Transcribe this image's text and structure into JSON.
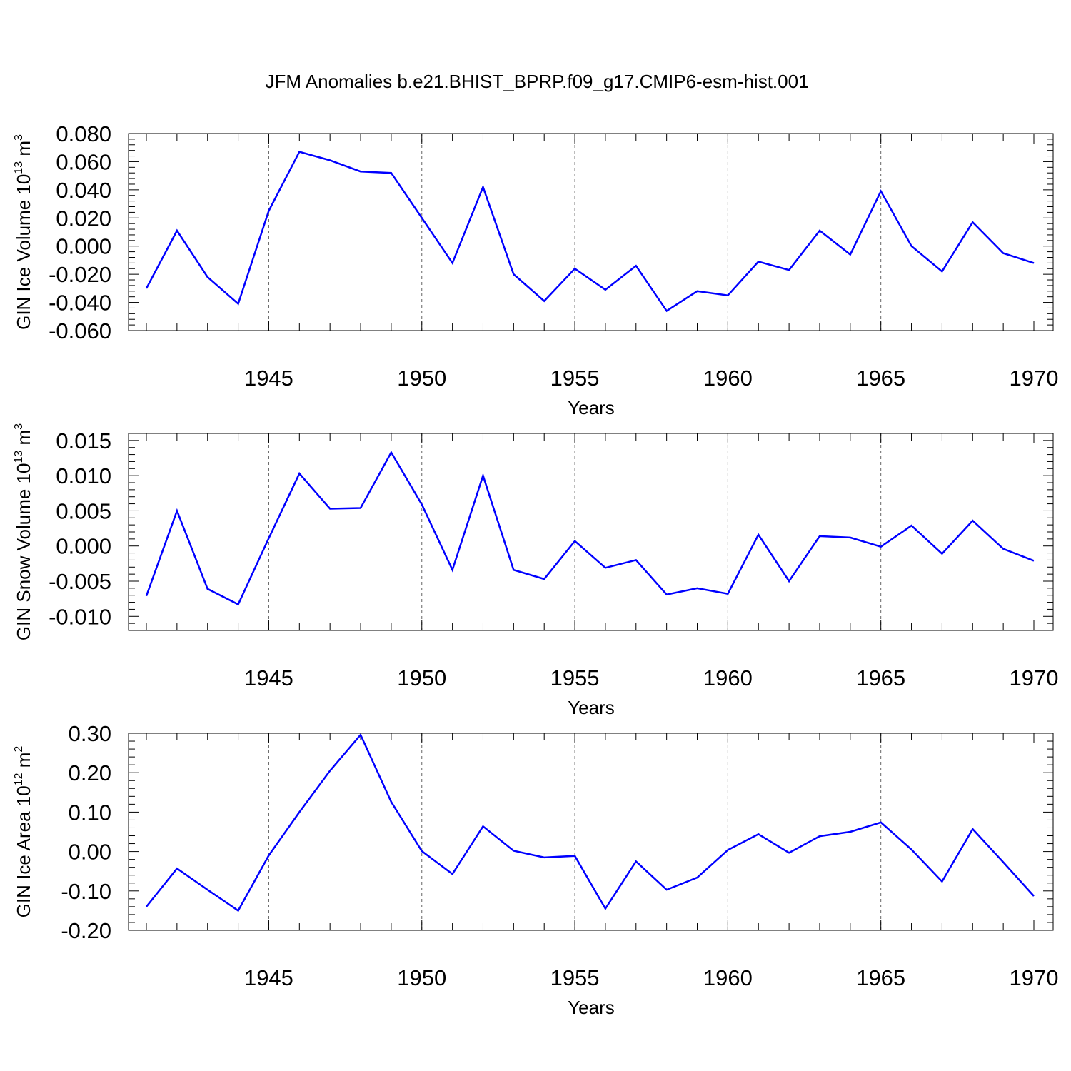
{
  "title": "JFM Anomalies b.e21.BHIST_BPRP.f09_g17.CMIP6-esm-hist.001",
  "line_color": "#0000ff",
  "chart_data": [
    {
      "type": "line",
      "ylabel_main": "GIN Ice Volume 10",
      "ylabel_exp": "13",
      "ylabel_unit": "m",
      "ylabel_unit_exp": "3",
      "xlabel": "Years",
      "xlim": [
        1941,
        1970
      ],
      "ylim": [
        -0.06,
        0.08
      ],
      "yticks": [
        -0.06,
        -0.04,
        -0.02,
        0.0,
        0.02,
        0.04,
        0.06,
        0.08
      ],
      "ytick_labels": [
        "-0.060",
        "-0.040",
        "-0.020",
        "0.000",
        "0.020",
        "0.040",
        "0.060",
        "0.080"
      ],
      "xticks": [
        1945,
        1950,
        1955,
        1960,
        1965,
        1970
      ],
      "xtick_labels": [
        "1945",
        "1950",
        "1955",
        "1960",
        "1965",
        "1970"
      ],
      "grid": "vertical dashed at major x ticks",
      "x": [
        1941,
        1942,
        1943,
        1944,
        1945,
        1946,
        1947,
        1948,
        1949,
        1950,
        1951,
        1952,
        1953,
        1954,
        1955,
        1956,
        1957,
        1958,
        1959,
        1960,
        1961,
        1962,
        1963,
        1964,
        1965,
        1966,
        1967,
        1968,
        1969,
        1970
      ],
      "y": [
        -0.03,
        0.011,
        -0.022,
        -0.041,
        0.025,
        0.067,
        0.061,
        0.053,
        0.052,
        0.02,
        -0.012,
        0.042,
        -0.02,
        -0.039,
        -0.016,
        -0.031,
        -0.014,
        -0.046,
        -0.032,
        -0.035,
        -0.011,
        -0.017,
        0.011,
        -0.006,
        0.039,
        0.0,
        -0.018,
        0.017,
        -0.005,
        -0.012
      ]
    },
    {
      "type": "line",
      "ylabel_main": "GIN Snow Volume 10",
      "ylabel_exp": "13",
      "ylabel_unit": "m",
      "ylabel_unit_exp": "3",
      "xlabel": "Years",
      "xlim": [
        1941,
        1970
      ],
      "ylim": [
        -0.012,
        0.016
      ],
      "yticks": [
        -0.01,
        -0.005,
        0.0,
        0.005,
        0.01,
        0.015
      ],
      "ytick_labels": [
        "-0.010",
        "-0.005",
        "0.000",
        "0.005",
        "0.010",
        "0.015"
      ],
      "xticks": [
        1945,
        1950,
        1955,
        1960,
        1965,
        1970
      ],
      "xtick_labels": [
        "1945",
        "1950",
        "1955",
        "1960",
        "1965",
        "1970"
      ],
      "grid": "vertical dashed at major x ticks",
      "x": [
        1941,
        1942,
        1943,
        1944,
        1945,
        1946,
        1947,
        1948,
        1949,
        1950,
        1951,
        1952,
        1953,
        1954,
        1955,
        1956,
        1957,
        1958,
        1959,
        1960,
        1961,
        1962,
        1963,
        1964,
        1965,
        1966,
        1967,
        1968,
        1969,
        1970
      ],
      "y": [
        -0.0071,
        0.005,
        -0.0061,
        -0.0083,
        0.0011,
        0.0103,
        0.0053,
        0.0054,
        0.0133,
        0.0059,
        -0.0034,
        0.01,
        -0.0034,
        -0.0047,
        0.0007,
        -0.0031,
        -0.002,
        -0.0069,
        -0.006,
        -0.0068,
        0.0016,
        -0.005,
        0.0014,
        0.0012,
        -0.0001,
        0.0029,
        -0.0011,
        0.0036,
        -0.0004,
        -0.0021
      ]
    },
    {
      "type": "line",
      "ylabel_main": "GIN Ice Area 10",
      "ylabel_exp": "12",
      "ylabel_unit": "m",
      "ylabel_unit_exp": "2",
      "xlabel": "Years",
      "xlim": [
        1941,
        1970
      ],
      "ylim": [
        -0.2,
        0.3
      ],
      "yticks": [
        -0.2,
        -0.1,
        0.0,
        0.1,
        0.2,
        0.3
      ],
      "ytick_labels": [
        "-0.20",
        "-0.10",
        "0.00",
        "0.10",
        "0.20",
        "0.30"
      ],
      "xticks": [
        1945,
        1950,
        1955,
        1960,
        1965,
        1970
      ],
      "xtick_labels": [
        "1945",
        "1950",
        "1955",
        "1960",
        "1965",
        "1970"
      ],
      "grid": "vertical dashed at major x ticks",
      "x": [
        1941,
        1942,
        1943,
        1944,
        1945,
        1946,
        1947,
        1948,
        1949,
        1950,
        1951,
        1952,
        1953,
        1954,
        1955,
        1956,
        1957,
        1958,
        1959,
        1960,
        1961,
        1962,
        1963,
        1964,
        1965,
        1966,
        1967,
        1968,
        1969,
        1970
      ],
      "y": [
        -0.14,
        -0.043,
        -0.097,
        -0.15,
        -0.01,
        0.1,
        0.205,
        0.296,
        0.126,
        0.001,
        -0.057,
        0.064,
        0.002,
        -0.015,
        -0.011,
        -0.145,
        -0.025,
        -0.097,
        -0.066,
        0.004,
        0.044,
        -0.003,
        0.039,
        0.05,
        0.074,
        0.005,
        -0.076,
        0.057,
        -0.027,
        -0.113
      ]
    }
  ]
}
